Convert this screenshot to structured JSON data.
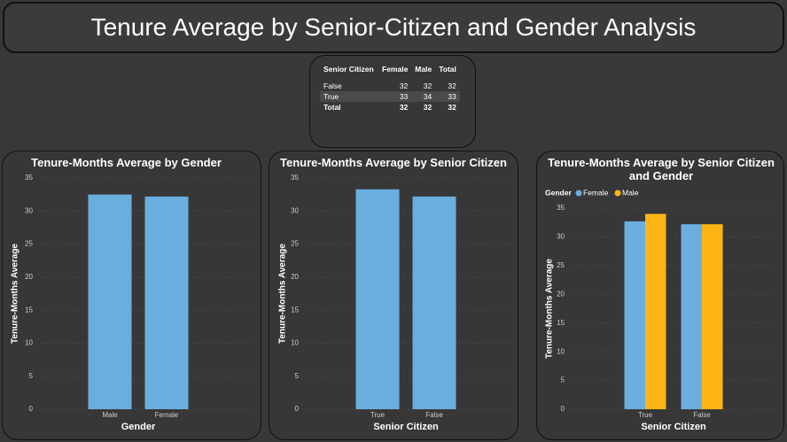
{
  "title": "Tenure Average by Senior-Citizen and Gender Analysis",
  "table": {
    "headers": [
      "Senior Citizen",
      "Female",
      "Male",
      "Total"
    ],
    "rows": [
      [
        "False",
        32,
        32,
        32
      ],
      [
        "True",
        33,
        34,
        33
      ],
      [
        "Total",
        32,
        32,
        32
      ]
    ]
  },
  "chart_data": [
    {
      "type": "bar",
      "title": "Tenure-Months Average by Gender",
      "x_label": "Gender",
      "y_label": "Tenure-Months Average",
      "categories": [
        "Male",
        "Female"
      ],
      "values": [
        32.5,
        32.2
      ],
      "color": "#6aaee0",
      "ylim": [
        0,
        35
      ],
      "yticks": [
        0,
        5,
        10,
        15,
        20,
        25,
        30,
        35
      ],
      "grid": true
    },
    {
      "type": "bar",
      "title": "Tenure-Months Average by Senior Citizen",
      "x_label": "Senior Citizen",
      "y_label": "Tenure-Months Average",
      "categories": [
        "True",
        "False"
      ],
      "values": [
        33.3,
        32.2
      ],
      "color": "#6aaee0",
      "ylim": [
        0,
        35
      ],
      "yticks": [
        0,
        5,
        10,
        15,
        20,
        25,
        30,
        35
      ],
      "grid": true
    },
    {
      "type": "grouped_bar",
      "title": "Tenure-Months Average by Senior Citizen and Gender",
      "x_label": "Senior Citizen",
      "y_label": "Tenure-Months Average",
      "legend_title": "Gender",
      "categories": [
        "True",
        "False"
      ],
      "series": [
        {
          "name": "Female",
          "color": "#6aaee0",
          "values": [
            32.7,
            32.2
          ]
        },
        {
          "name": "Male",
          "color": "#fdb515",
          "values": [
            34.0,
            32.2
          ]
        }
      ],
      "ylim": [
        0,
        35
      ],
      "yticks": [
        0,
        5,
        10,
        15,
        20,
        25,
        30,
        35
      ],
      "grid": true
    }
  ]
}
